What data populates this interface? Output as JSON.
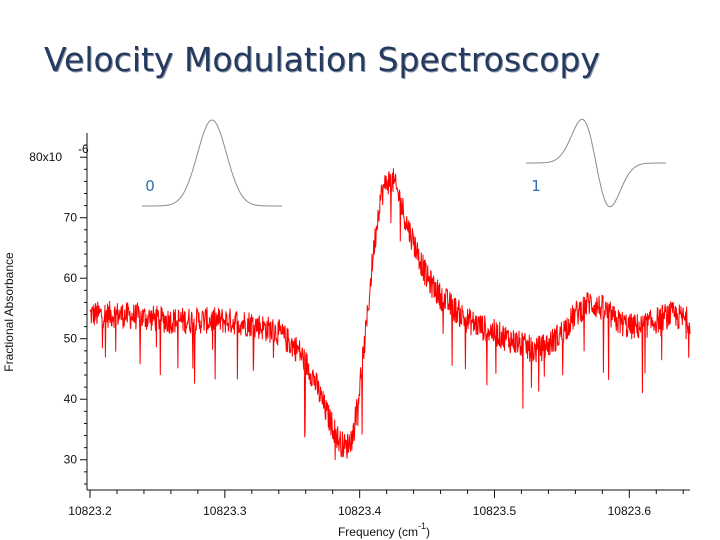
{
  "slide": {
    "title": "Velocity Modulation Spectroscopy"
  },
  "colors": {
    "title": "#243a5e",
    "trace": "#ff0000",
    "axis": "#111111",
    "inset_line": "#8c8c8c",
    "inset_label": "#2e6fb0"
  },
  "chart_data": {
    "type": "line",
    "title": "",
    "xlabel": "Frequency (cm",
    "xlabel_exponent": "-1",
    "xlabel_suffix": ")",
    "ylabel": "Fractional Absorbance",
    "xlim": [
      10823.2,
      10823.645
    ],
    "ylim": [
      25,
      84
    ],
    "x_ticks": [
      10823.2,
      10823.3,
      10823.4,
      10823.5,
      10823.6
    ],
    "x_tick_labels": [
      "10823.2",
      "10823.3",
      "10823.4",
      "10823.5",
      "10823.6"
    ],
    "y_ticks": [
      30,
      40,
      50,
      60,
      70,
      80
    ],
    "y_tick_labels": [
      "30",
      "40",
      "50",
      "60",
      "70",
      "80x10"
    ],
    "y_top_exponent": "-6",
    "grid": false,
    "series": [
      {
        "name": "Fractional Absorbance",
        "color": "#ff0000",
        "x": [
          10823.2,
          10823.22,
          10823.24,
          10823.26,
          10823.28,
          10823.3,
          10823.32,
          10823.34,
          10823.355,
          10823.365,
          10823.375,
          10823.385,
          10823.39,
          10823.395,
          10823.4,
          10823.405,
          10823.41,
          10823.415,
          10823.42,
          10823.425,
          10823.43,
          10823.435,
          10823.44,
          10823.445,
          10823.45,
          10823.46,
          10823.47,
          10823.48,
          10823.49,
          10823.5,
          10823.51,
          10823.52,
          10823.53,
          10823.54,
          10823.55,
          10823.56,
          10823.57,
          10823.58,
          10823.59,
          10823.6,
          10823.61,
          10823.62,
          10823.63,
          10823.645
        ],
        "values": [
          54,
          54,
          53.5,
          53,
          53,
          53,
          52.5,
          51,
          48,
          44,
          38,
          33,
          32,
          34,
          42,
          52,
          64,
          73,
          76,
          76,
          73,
          69,
          66,
          63,
          60,
          57,
          55,
          53,
          52,
          51,
          50,
          49,
          48,
          49,
          51,
          54,
          56,
          55,
          53,
          52,
          52,
          53,
          54,
          53
        ]
      }
    ],
    "insets": [
      {
        "label": "0",
        "shape": "gaussian"
      },
      {
        "label": "1",
        "shape": "derivative"
      }
    ]
  }
}
